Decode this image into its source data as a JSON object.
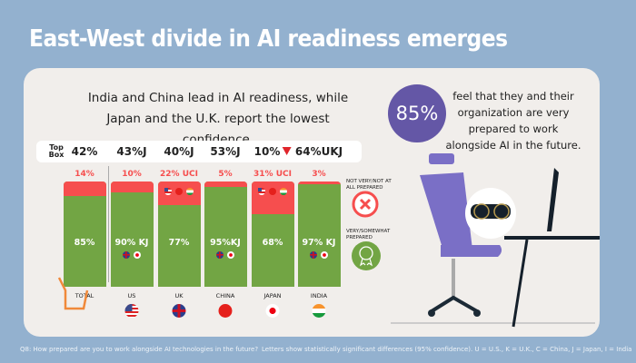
{
  "title": "East-West divide in AI readiness emerges",
  "subtitle": "India and China lead in AI readiness, while Japan and the U.K. report the lowest confidence.",
  "stat": {
    "value": "85%",
    "text": "feel that they and their organization are very prepared to work alongside AI in the future."
  },
  "legend": {
    "not_prepared": "NOT VERY/NOT AT ALL PREPARED",
    "prepared": "VERY/SOMEWHAT PREPARED"
  },
  "footer": {
    "question": "Q8: How prepared are you to work alongside AI technologies in the future?",
    "note": "Letters show statistically significant differences (95% confidence). U = U.S., K = U.K., C = China, J = Japan, I = India"
  },
  "colors": {
    "prepared": "#72a544",
    "not_prepared": "#f64e4e",
    "accent": "#6457a6"
  },
  "chart_data": {
    "type": "bar",
    "stacked": true,
    "top_box_label": "Top Box",
    "categories": [
      "TOTAL",
      "US",
      "UK",
      "CHINA",
      "JAPAN",
      "INDIA"
    ],
    "top_box": [
      "42%",
      "43%J",
      "40%J",
      "53%J",
      "10%",
      "64%UKJ"
    ],
    "series": [
      {
        "name": "Very/somewhat prepared",
        "values": [
          85,
          90,
          77,
          95,
          68,
          97
        ],
        "labels": [
          "85%",
          "90% KJ",
          "77%",
          "95%KJ",
          "68%",
          "97% KJ"
        ]
      },
      {
        "name": "Not very/not at all prepared",
        "values": [
          14,
          10,
          22,
          5,
          31,
          3
        ],
        "labels": [
          "14%",
          "10%",
          "22% UCI",
          "5%",
          "31% UCI",
          "3%"
        ]
      }
    ],
    "ylim": [
      0,
      100
    ]
  }
}
